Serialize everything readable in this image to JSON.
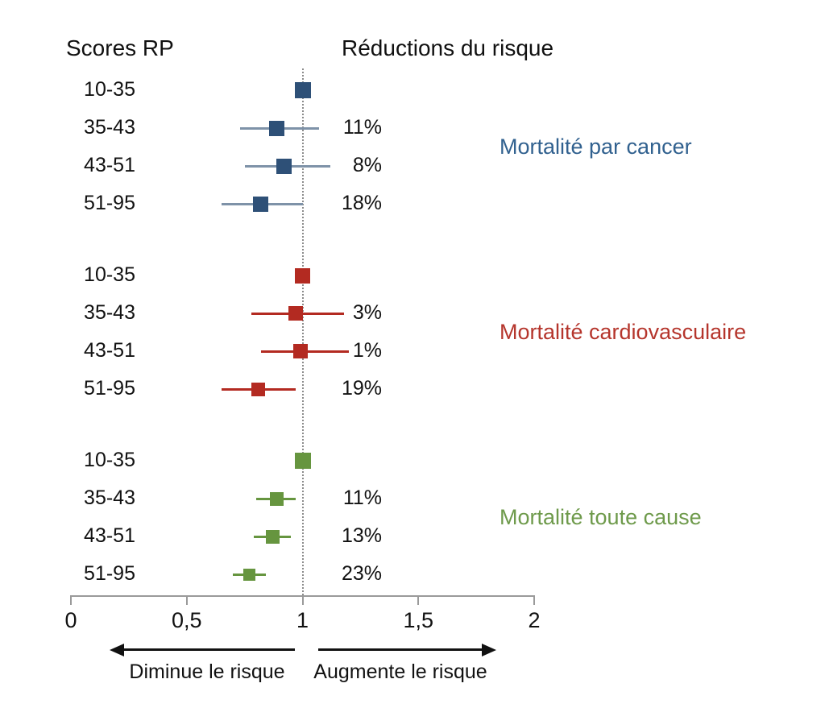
{
  "chart_data": {
    "type": "forest",
    "columns": {
      "left_header": "Scores RP",
      "right_header": "Réductions du risque"
    },
    "axis": {
      "min": 0,
      "max": 2,
      "ticks": [
        {
          "value": 0,
          "label": "0"
        },
        {
          "value": 0.5,
          "label": "0,5"
        },
        {
          "value": 1,
          "label": "1"
        },
        {
          "value": 1.5,
          "label": "1,5"
        },
        {
          "value": 2,
          "label": "2"
        }
      ],
      "reference_value": 1
    },
    "direction_labels": {
      "left": "Diminue le risque",
      "right": "Augmente le risque"
    },
    "groups": [
      {
        "name": "Mortalité par cancer",
        "marker_color": "#2E5077",
        "ci_color": "#7E92A8",
        "label_color": "#31618F",
        "rows": [
          {
            "score": "10-35",
            "rr": 1.0,
            "ci": null,
            "reduction": null,
            "size": 20
          },
          {
            "score": "35-43",
            "rr": 0.89,
            "ci": [
              0.73,
              1.07
            ],
            "reduction": "11%",
            "size": 19
          },
          {
            "score": "43-51",
            "rr": 0.92,
            "ci": [
              0.75,
              1.12
            ],
            "reduction": "8%",
            "size": 19
          },
          {
            "score": "51-95",
            "rr": 0.82,
            "ci": [
              0.65,
              1.0
            ],
            "reduction": "18%",
            "size": 19
          }
        ]
      },
      {
        "name": "Mortalité cardiovasculaire",
        "marker_color": "#B32A21",
        "ci_color": "#B32A21",
        "label_color": "#B5352C",
        "rows": [
          {
            "score": "10-35",
            "rr": 1.0,
            "ci": null,
            "reduction": null,
            "size": 19
          },
          {
            "score": "35-43",
            "rr": 0.97,
            "ci": [
              0.78,
              1.18
            ],
            "reduction": "3%",
            "size": 18
          },
          {
            "score": "43-51",
            "rr": 0.99,
            "ci": [
              0.82,
              1.2
            ],
            "reduction": "1%",
            "size": 18
          },
          {
            "score": "51-95",
            "rr": 0.81,
            "ci": [
              0.65,
              0.97
            ],
            "reduction": "19%",
            "size": 17
          }
        ]
      },
      {
        "name": "Mortalité toute cause",
        "marker_color": "#66953F",
        "ci_color": "#66953F",
        "label_color": "#6E9A4B",
        "rows": [
          {
            "score": "10-35",
            "rr": 1.0,
            "ci": null,
            "reduction": null,
            "size": 20
          },
          {
            "score": "35-43",
            "rr": 0.89,
            "ci": [
              0.8,
              0.97
            ],
            "reduction": "11%",
            "size": 17
          },
          {
            "score": "43-51",
            "rr": 0.87,
            "ci": [
              0.79,
              0.95
            ],
            "reduction": "13%",
            "size": 17
          },
          {
            "score": "51-95",
            "rr": 0.77,
            "ci": [
              0.7,
              0.84
            ],
            "reduction": "23%",
            "size": 15
          }
        ]
      }
    ]
  }
}
